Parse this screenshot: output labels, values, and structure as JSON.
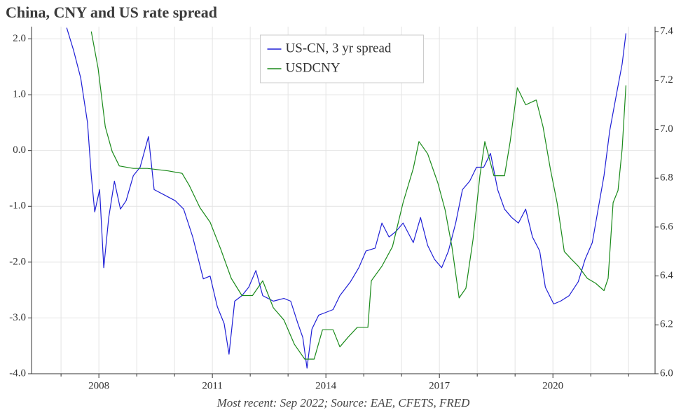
{
  "chart_data": {
    "type": "line",
    "title": "China, CNY and US rate spread",
    "caption": "Most recent: Sep 2022; Source: EAE, CFETS, FRED",
    "legend": "upper center",
    "grid": true,
    "xlim": [
      2006.22,
      2022.7
    ],
    "xticks": [
      2008,
      2011,
      2014,
      2017,
      2020
    ],
    "x_minor_ticks": [
      2007,
      2009,
      2010,
      2012,
      2013,
      2015,
      2016,
      2018,
      2019,
      2021,
      2022
    ],
    "ylim": [
      -4.0,
      2.22
    ],
    "yticks": [
      {
        "value": -4,
        "label": "-4.0"
      },
      {
        "value": -3,
        "label": "-3.0"
      },
      {
        "value": -2,
        "label": "-2.0"
      },
      {
        "value": -1,
        "label": "-1.0"
      },
      {
        "value": 0,
        "label": "0.0"
      },
      {
        "value": 1,
        "label": "1.0"
      },
      {
        "value": 2,
        "label": "2.0"
      }
    ],
    "y2lim": [
      6.0,
      7.42
    ],
    "y2ticks": [
      {
        "value": 6,
        "label": "6.0"
      },
      6.2,
      6.4,
      6.6,
      6.8,
      {
        "value": 7,
        "label": "7.0"
      },
      7.2,
      7.4
    ],
    "series": [
      {
        "name": "US-CN, 3 yr spread",
        "color": "#1f1fd6",
        "axis": "y",
        "x": [
          2007.15,
          2007.33,
          2007.52,
          2007.7,
          2007.8,
          2007.89,
          2008.02,
          2008.13,
          2008.26,
          2008.41,
          2008.57,
          2008.72,
          2008.91,
          2009.09,
          2009.31,
          2009.46,
          2009.74,
          2010.02,
          2010.24,
          2010.48,
          2010.76,
          2010.94,
          2011.13,
          2011.31,
          2011.44,
          2011.59,
          2011.78,
          2011.96,
          2012.15,
          2012.33,
          2012.61,
          2012.89,
          2013.07,
          2013.26,
          2013.39,
          2013.5,
          2013.63,
          2013.81,
          2014.0,
          2014.19,
          2014.37,
          2014.65,
          2014.87,
          2015.06,
          2015.3,
          2015.48,
          2015.67,
          2015.85,
          2016.04,
          2016.31,
          2016.5,
          2016.69,
          2016.87,
          2017.06,
          2017.24,
          2017.43,
          2017.61,
          2017.8,
          2017.98,
          2018.17,
          2018.35,
          2018.54,
          2018.72,
          2018.91,
          2019.09,
          2019.28,
          2019.46,
          2019.65,
          2019.8,
          2020.02,
          2020.2,
          2020.43,
          2020.67,
          2020.85,
          2021.04,
          2021.22,
          2021.35,
          2021.5,
          2021.69,
          2021.83,
          2021.93
        ],
        "values": [
          2.2,
          1.8,
          1.3,
          0.5,
          -0.45,
          -1.1,
          -0.7,
          -2.1,
          -1.2,
          -0.55,
          -1.05,
          -0.9,
          -0.45,
          -0.3,
          0.25,
          -0.7,
          -0.8,
          -0.9,
          -1.05,
          -1.55,
          -2.3,
          -2.25,
          -2.8,
          -3.1,
          -3.65,
          -2.7,
          -2.6,
          -2.45,
          -2.15,
          -2.6,
          -2.7,
          -2.65,
          -2.7,
          -3.1,
          -3.35,
          -3.9,
          -3.2,
          -2.95,
          -2.9,
          -2.85,
          -2.6,
          -2.35,
          -2.1,
          -1.8,
          -1.75,
          -1.3,
          -1.55,
          -1.45,
          -1.3,
          -1.65,
          -1.2,
          -1.7,
          -1.95,
          -2.1,
          -1.8,
          -1.3,
          -0.7,
          -0.55,
          -0.3,
          -0.3,
          -0.05,
          -0.7,
          -1.05,
          -1.2,
          -1.3,
          -1.05,
          -1.55,
          -1.8,
          -2.45,
          -2.75,
          -2.7,
          -2.6,
          -2.35,
          -1.95,
          -1.65,
          -0.95,
          -0.45,
          0.35,
          1.05,
          1.55,
          2.1
        ]
      },
      {
        "name": "USDCNY",
        "color": "#1a8a1a",
        "axis": "y2",
        "x": [
          2007.8,
          2007.98,
          2008.17,
          2008.35,
          2008.54,
          2008.91,
          2009.28,
          2009.83,
          2010.2,
          2010.39,
          2010.67,
          2010.94,
          2011.22,
          2011.5,
          2011.78,
          2012.06,
          2012.33,
          2012.61,
          2012.89,
          2013.17,
          2013.44,
          2013.69,
          2013.91,
          2014.19,
          2014.37,
          2014.59,
          2014.83,
          2015.11,
          2015.2,
          2015.48,
          2015.76,
          2016.04,
          2016.31,
          2016.46,
          2016.69,
          2016.96,
          2017.15,
          2017.33,
          2017.52,
          2017.7,
          2017.89,
          2018.07,
          2018.2,
          2018.44,
          2018.72,
          2018.87,
          2019.06,
          2019.28,
          2019.56,
          2019.74,
          2019.93,
          2020.11,
          2020.3,
          2020.48,
          2020.67,
          2020.91,
          2021.13,
          2021.35,
          2021.46,
          2021.59,
          2021.72,
          2021.83,
          2021.93
        ],
        "values": [
          7.4,
          7.25,
          7.01,
          6.91,
          6.85,
          6.84,
          6.84,
          6.83,
          6.82,
          6.77,
          6.68,
          6.62,
          6.51,
          6.39,
          6.32,
          6.32,
          6.38,
          6.27,
          6.22,
          6.12,
          6.06,
          6.06,
          6.18,
          6.18,
          6.11,
          6.15,
          6.19,
          6.19,
          6.38,
          6.44,
          6.52,
          6.7,
          6.84,
          6.95,
          6.9,
          6.78,
          6.67,
          6.52,
          6.31,
          6.35,
          6.55,
          6.81,
          6.95,
          6.81,
          6.81,
          6.95,
          7.17,
          7.1,
          7.12,
          7.01,
          6.84,
          6.7,
          6.5,
          6.47,
          6.44,
          6.39,
          6.37,
          6.34,
          6.39,
          6.7,
          6.75,
          6.92,
          7.18
        ]
      }
    ]
  }
}
